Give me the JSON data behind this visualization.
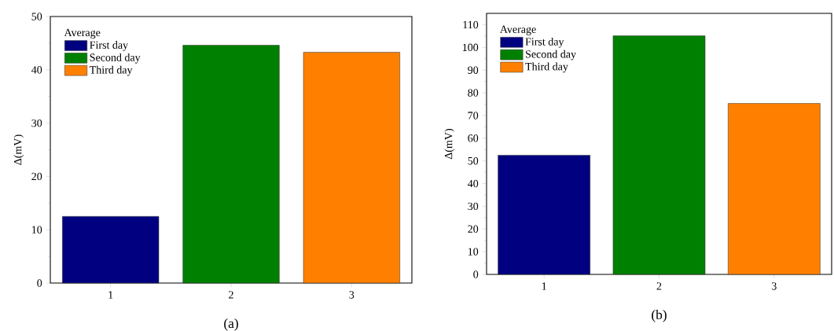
{
  "chart_data": [
    {
      "type": "bar",
      "categories": [
        "1",
        "2",
        "3"
      ],
      "ylabel": "Δ(mV)",
      "ylim": [
        0,
        50
      ],
      "yticks": [
        0,
        10,
        20,
        30,
        40,
        50
      ],
      "legend": "top left",
      "legend_title": "Average",
      "annotations": [
        "(a)"
      ],
      "series": [
        {
          "name": "First day",
          "color": "#000080",
          "values": [
            12.5,
            null,
            null
          ]
        },
        {
          "name": "Second day",
          "color": "#008000",
          "values": [
            null,
            44.6,
            null
          ]
        },
        {
          "name": "Third day",
          "color": "#ff8000",
          "values": [
            null,
            null,
            43.3
          ]
        }
      ]
    },
    {
      "type": "bar",
      "categories": [
        "1",
        "2",
        "3"
      ],
      "ylabel": "Δ(mV)",
      "ylim": [
        0,
        115
      ],
      "yticks": [
        0,
        10,
        20,
        30,
        40,
        50,
        60,
        70,
        80,
        90,
        100,
        110
      ],
      "legend": "top left",
      "legend_title": "Average",
      "annotations": [
        "(b)"
      ],
      "series": [
        {
          "name": "First day",
          "color": "#000080",
          "values": [
            52.5,
            null,
            null
          ]
        },
        {
          "name": "Second day",
          "color": "#008000",
          "values": [
            null,
            105.1,
            null
          ]
        },
        {
          "name": "Third day",
          "color": "#ff8000",
          "values": [
            null,
            null,
            75.3
          ]
        }
      ]
    }
  ]
}
